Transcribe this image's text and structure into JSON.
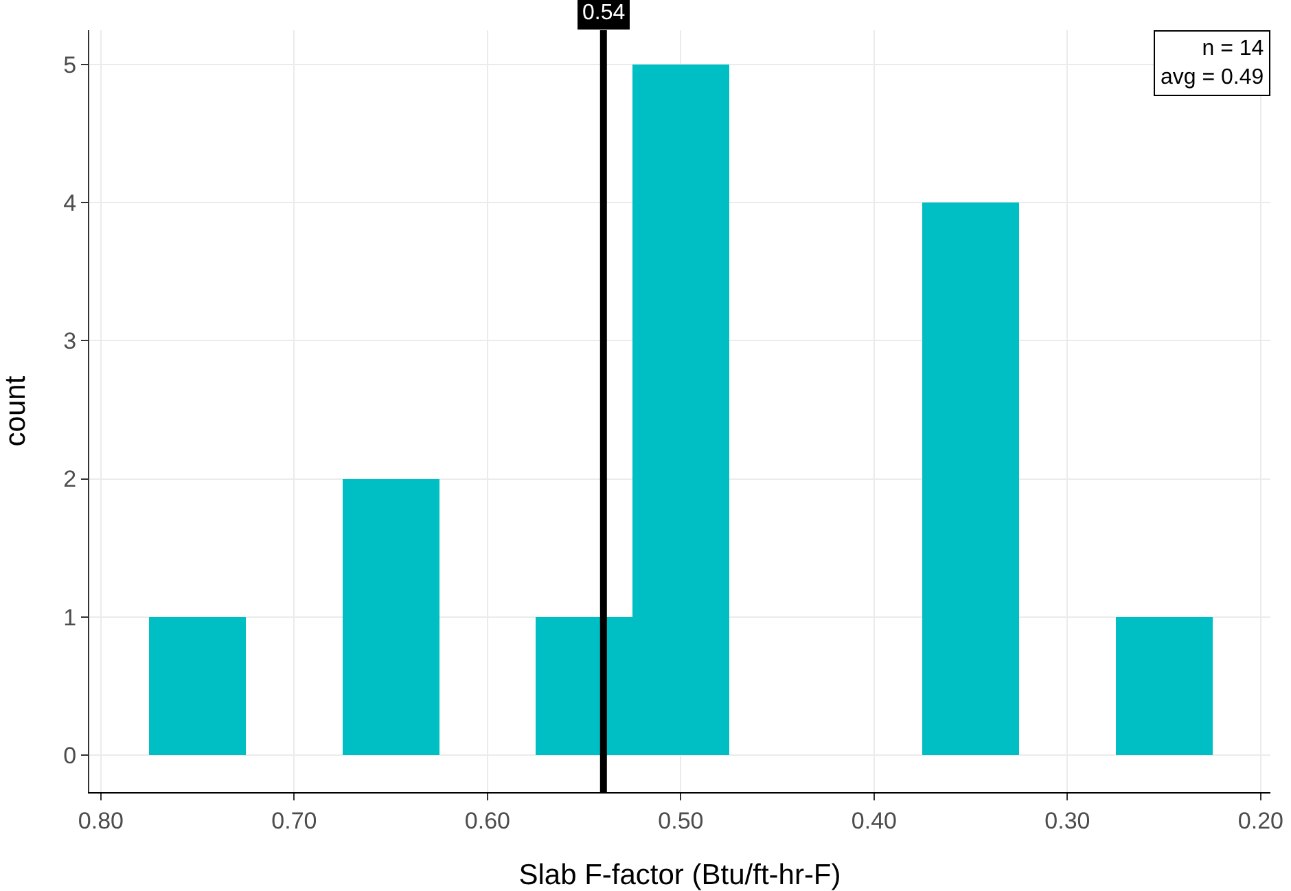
{
  "chart_data": {
    "type": "histogram",
    "xlabel": "Slab F-factor (Btu/ft-hr-F)",
    "ylabel": "count",
    "bins": [
      0.775,
      0.725,
      0.675,
      0.625,
      0.575,
      0.525,
      0.475,
      0.425,
      0.375,
      0.325,
      0.275,
      0.225
    ],
    "values": [
      1,
      0,
      2,
      0,
      1,
      5,
      0,
      0,
      4,
      0,
      1
    ],
    "color": "#00bfc4",
    "xlim": [
      0.806,
      0.195
    ],
    "xticks": [
      {
        "value": 0.8,
        "label": "0.80"
      },
      {
        "value": 0.7,
        "label": "0.70"
      },
      {
        "value": 0.6,
        "label": "0.60"
      },
      {
        "value": 0.5,
        "label": "0.50"
      },
      {
        "value": 0.4,
        "label": "0.40"
      },
      {
        "value": 0.3,
        "label": "0.30"
      },
      {
        "value": 0.2,
        "label": "0.20"
      }
    ],
    "ylim": [
      -0.27,
      5.25
    ],
    "yticks": [
      0,
      1,
      2,
      3,
      4,
      5
    ],
    "grid": true,
    "ref_lines": [
      {
        "axis": "x",
        "value": 0.54,
        "label": "0.54",
        "color": "#000000"
      }
    ],
    "annotations": [
      "n = 14",
      "avg = 0.49"
    ]
  }
}
